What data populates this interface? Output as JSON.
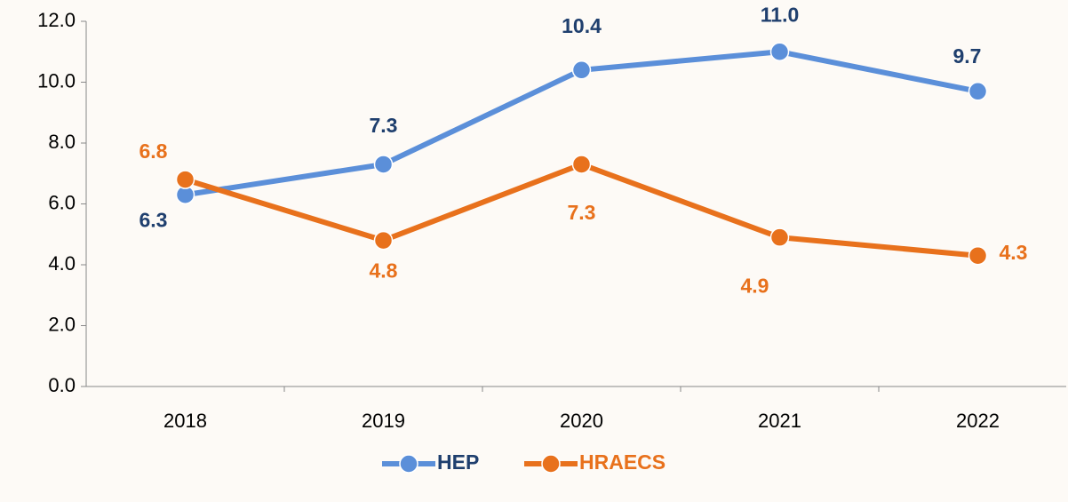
{
  "chart_data": {
    "type": "line",
    "categories": [
      "2018",
      "2019",
      "2020",
      "2021",
      "2022"
    ],
    "series": [
      {
        "name": "HEP",
        "color": "#5b8fd9",
        "label_color": "#1f3f6e",
        "values": [
          6.3,
          7.3,
          10.4,
          11.0,
          9.7
        ],
        "value_labels": [
          "6.3",
          "7.3",
          "10.4",
          "11.0",
          "9.7"
        ]
      },
      {
        "name": "HRAECS",
        "color": "#e8711c",
        "label_color": "#e8711c",
        "values": [
          6.8,
          4.8,
          7.3,
          4.9,
          4.3
        ],
        "value_labels": [
          "6.8",
          "4.8",
          "7.3",
          "4.9",
          "4.3"
        ]
      }
    ],
    "ylim": [
      0,
      12
    ],
    "yticks": [
      {
        "value": 0,
        "label": "0.0"
      },
      {
        "value": 2,
        "label": "2.0"
      },
      {
        "value": 4,
        "label": "4.0"
      },
      {
        "value": 6,
        "label": "6.0"
      },
      {
        "value": 8,
        "label": "8.0"
      },
      {
        "value": 10,
        "label": "10.0"
      },
      {
        "value": 12,
        "label": "12.0"
      }
    ],
    "grid": false,
    "legend": "bottom"
  }
}
